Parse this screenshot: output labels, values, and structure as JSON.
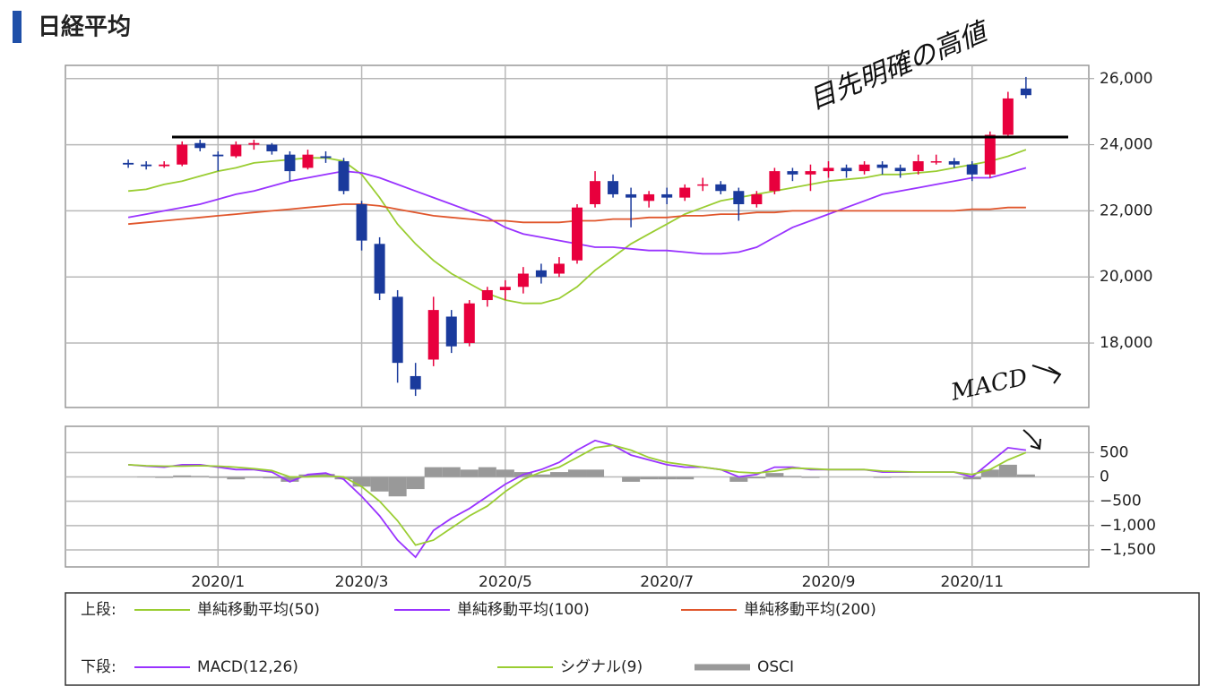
{
  "chart_data": [
    {
      "type": "candlestick",
      "title": "日経平均",
      "legend_label": "上段:",
      "annotation": "目先明確の高値",
      "up_color": "#e8003d",
      "down_color": "#1a3a9c",
      "ylim": [
        16050,
        26400
      ],
      "yticks": [
        {
          "value": 18000,
          "label": "18,000"
        },
        {
          "value": 20000,
          "label": "20,000"
        },
        {
          "value": 22000,
          "label": "22,000"
        },
        {
          "value": 24000,
          "label": "24,000"
        },
        {
          "value": 26000,
          "label": "26,000"
        }
      ],
      "open": [
        null,
        null,
        null,
        23450,
        23400,
        23350,
        23400,
        24050,
        23700,
        23650,
        24000,
        24000,
        23700,
        23300,
        23650,
        23500,
        22200,
        21000,
        19400,
        17000,
        17500,
        18800,
        18000,
        19300,
        19600,
        19700,
        20200,
        20100,
        20500,
        22200,
        22900,
        22500,
        22300,
        22500,
        22400,
        22800,
        22800,
        22600,
        22200,
        22600,
        23200,
        23100,
        23200,
        23300,
        23200,
        23400,
        23300,
        23200,
        23500,
        23500,
        23400,
        23100,
        24300,
        25700,
        null,
        null,
        null
      ],
      "high": [
        null,
        null,
        null,
        23550,
        23500,
        23500,
        24100,
        24150,
        23800,
        24100,
        24150,
        24050,
        23800,
        23850,
        23800,
        23600,
        22300,
        21200,
        19600,
        17400,
        19400,
        19000,
        19300,
        19700,
        19900,
        20300,
        20400,
        20600,
        22200,
        23200,
        23100,
        22700,
        22600,
        22700,
        22800,
        23000,
        22900,
        22700,
        22600,
        23300,
        23300,
        23400,
        23500,
        23400,
        23500,
        23500,
        23400,
        23700,
        23700,
        23600,
        23500,
        24400,
        25600,
        26050,
        null,
        null,
        null
      ],
      "low": [
        null,
        null,
        null,
        23300,
        23250,
        23300,
        23350,
        23800,
        23200,
        23600,
        23850,
        23700,
        22900,
        23250,
        23450,
        22500,
        20800,
        19300,
        16800,
        16400,
        17300,
        17700,
        17900,
        19100,
        19300,
        19500,
        19800,
        20000,
        20400,
        22100,
        22400,
        21500,
        22100,
        22200,
        22300,
        22600,
        22500,
        21700,
        22100,
        22500,
        22900,
        22600,
        23000,
        23000,
        23100,
        23100,
        23000,
        23100,
        23400,
        23300,
        22900,
        23000,
        24200,
        25400,
        null,
        null,
        null
      ],
      "close": [
        null,
        null,
        null,
        23400,
        23350,
        23400,
        24000,
        23900,
        23650,
        24000,
        24050,
        23800,
        23200,
        23700,
        23600,
        22600,
        21100,
        19500,
        17400,
        16600,
        19000,
        17900,
        19200,
        19600,
        19700,
        20100,
        20000,
        20400,
        22100,
        22900,
        22500,
        22400,
        22500,
        22400,
        22700,
        22800,
        22600,
        22200,
        22500,
        23200,
        23100,
        23200,
        23300,
        23200,
        23400,
        23300,
        23200,
        23500,
        23500,
        23400,
        23100,
        24300,
        25400,
        25500,
        null,
        null,
        null
      ],
      "lines": [
        {
          "name": "単純移動平均(50)",
          "color": "#9acd32",
          "values": [
            null,
            null,
            null,
            22600,
            22650,
            22800,
            22900,
            23050,
            23200,
            23300,
            23450,
            23500,
            23550,
            23600,
            23600,
            23500,
            23100,
            22400,
            21600,
            21000,
            20500,
            20100,
            19800,
            19500,
            19300,
            19200,
            19200,
            19350,
            19700,
            20200,
            20600,
            21000,
            21300,
            21600,
            21900,
            22100,
            22300,
            22400,
            22500,
            22600,
            22700,
            22800,
            22900,
            22950,
            23000,
            23100,
            23100,
            23150,
            23200,
            23300,
            23400,
            23500,
            23650,
            23850,
            null,
            null,
            null
          ]
        },
        {
          "name": "単純移動平均(100)",
          "color": "#9933ff",
          "values": [
            null,
            null,
            null,
            21800,
            21900,
            22000,
            22100,
            22200,
            22350,
            22500,
            22600,
            22750,
            22900,
            23000,
            23100,
            23200,
            23150,
            23000,
            22800,
            22600,
            22400,
            22200,
            22000,
            21800,
            21500,
            21300,
            21200,
            21100,
            21000,
            20900,
            20900,
            20850,
            20800,
            20800,
            20750,
            20700,
            20700,
            20750,
            20900,
            21200,
            21500,
            21700,
            21900,
            22100,
            22300,
            22500,
            22600,
            22700,
            22800,
            22900,
            23000,
            23000,
            23150,
            23300,
            null,
            null,
            null
          ]
        },
        {
          "name": "単純移動平均(200)",
          "color": "#e0562c",
          "values": [
            null,
            null,
            null,
            21600,
            21650,
            21700,
            21750,
            21800,
            21850,
            21900,
            21950,
            22000,
            22050,
            22100,
            22150,
            22200,
            22200,
            22150,
            22050,
            21950,
            21850,
            21800,
            21750,
            21700,
            21700,
            21650,
            21650,
            21650,
            21700,
            21700,
            21750,
            21750,
            21800,
            21800,
            21850,
            21850,
            21900,
            21900,
            21950,
            21950,
            22000,
            22000,
            22000,
            22000,
            22000,
            22000,
            22000,
            22000,
            22000,
            22000,
            22050,
            22050,
            22100,
            22100,
            null,
            null,
            null
          ]
        }
      ]
    },
    {
      "type": "macd",
      "legend_label": "下段:",
      "annotation": "MACD",
      "categories": [
        null,
        null,
        null,
        null,
        null,
        null,
        null,
        null,
        "2020/1",
        null,
        null,
        null,
        null,
        null,
        null,
        null,
        "2020/3",
        null,
        null,
        null,
        null,
        null,
        null,
        null,
        "2020/5",
        null,
        null,
        null,
        null,
        null,
        null,
        null,
        null,
        "2020/7",
        null,
        null,
        null,
        null,
        null,
        null,
        null,
        null,
        "2020/9",
        null,
        null,
        null,
        null,
        null,
        null,
        null,
        "2020/11",
        null,
        null,
        null,
        null,
        null,
        null
      ],
      "ylim": [
        -1850,
        1040
      ],
      "yticks": [
        {
          "value": -1500,
          "label": "−1,500"
        },
        {
          "value": -1000,
          "label": "−1,000"
        },
        {
          "value": -500,
          "label": "−500"
        },
        0,
        500
      ],
      "series": [
        {
          "name": "MACD(12,26)",
          "color": "#9933ff",
          "values": [
            null,
            null,
            null,
            250,
            220,
            200,
            250,
            250,
            200,
            150,
            150,
            100,
            -100,
            50,
            80,
            -50,
            -400,
            -800,
            -1300,
            -1650,
            -1100,
            -850,
            -650,
            -400,
            -150,
            50,
            150,
            300,
            550,
            750,
            650,
            450,
            350,
            250,
            200,
            200,
            150,
            0,
            50,
            200,
            200,
            150,
            150,
            150,
            150,
            100,
            100,
            100,
            100,
            100,
            0,
            300,
            600,
            550,
            null,
            null,
            null
          ]
        },
        {
          "name": "シグナル(9)",
          "color": "#9acd32",
          "values": [
            null,
            null,
            null,
            250,
            230,
            220,
            220,
            230,
            220,
            200,
            170,
            130,
            0,
            0,
            20,
            0,
            -200,
            -500,
            -900,
            -1400,
            -1300,
            -1050,
            -800,
            -600,
            -300,
            -50,
            100,
            200,
            400,
            600,
            650,
            550,
            400,
            300,
            250,
            200,
            150,
            100,
            80,
            120,
            180,
            170,
            150,
            150,
            150,
            120,
            110,
            100,
            100,
            100,
            50,
            150,
            350,
            500,
            null,
            null,
            null
          ]
        }
      ],
      "bars": {
        "name": "OSCI",
        "color": "#999999",
        "values": [
          null,
          null,
          null,
          0,
          -10,
          -20,
          30,
          20,
          -20,
          -50,
          -20,
          -30,
          -100,
          50,
          60,
          -50,
          -200,
          -300,
          -400,
          -250,
          200,
          200,
          150,
          200,
          150,
          100,
          50,
          100,
          150,
          150,
          0,
          -100,
          -50,
          -50,
          -50,
          0,
          0,
          -100,
          -30,
          80,
          20,
          -20,
          0,
          0,
          0,
          -20,
          -10,
          0,
          0,
          0,
          -50,
          150,
          250,
          50,
          null,
          null,
          null
        ]
      }
    }
  ]
}
